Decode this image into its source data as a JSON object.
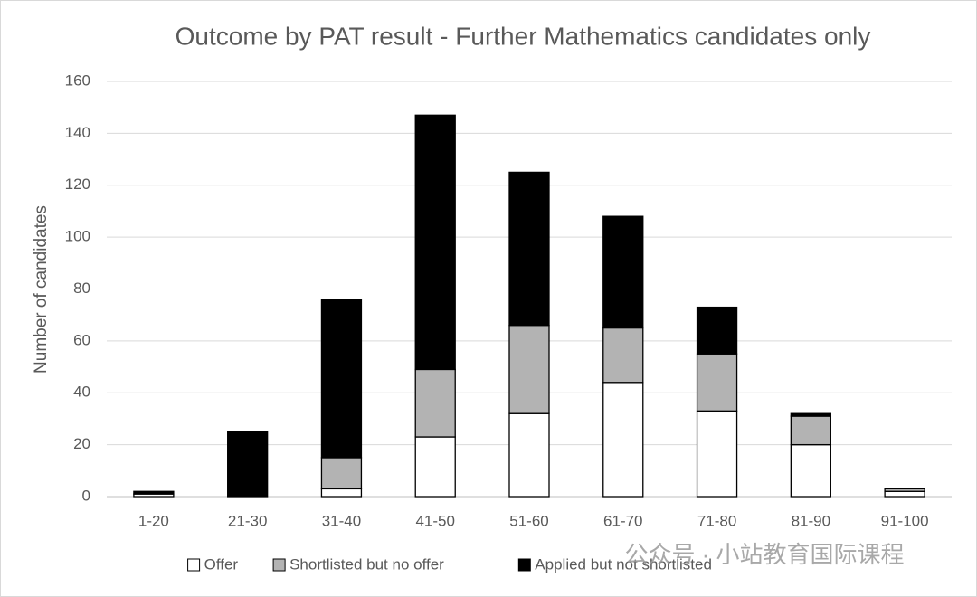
{
  "chart_data": {
    "type": "stacked_bar",
    "title": "Outcome by PAT result - Further Mathematics candidates only",
    "y_label": "Number of candidates",
    "categories": [
      "1-20",
      "21-30",
      "31-40",
      "41-50",
      "51-60",
      "61-70",
      "71-80",
      "81-90",
      "91-100"
    ],
    "series": [
      {
        "name": "Offer",
        "color": "#ffffff",
        "values": [
          1,
          0,
          3,
          23,
          32,
          44,
          33,
          20,
          2
        ]
      },
      {
        "name": "Shortlisted but no offer",
        "color": "#b3b3b3",
        "values": [
          0,
          0,
          12,
          26,
          34,
          21,
          22,
          11,
          1
        ]
      },
      {
        "name": "Applied but not shortlisted",
        "color": "#000000",
        "values": [
          1,
          25,
          61,
          98,
          59,
          43,
          18,
          1,
          0
        ]
      }
    ],
    "ylim": [
      0,
      160
    ],
    "yticks": [
      0,
      20,
      40,
      60,
      80,
      100,
      120,
      140,
      160
    ],
    "grid": true,
    "legend": "bottom",
    "watermark": "公众号 · 小站教育国际课程"
  }
}
